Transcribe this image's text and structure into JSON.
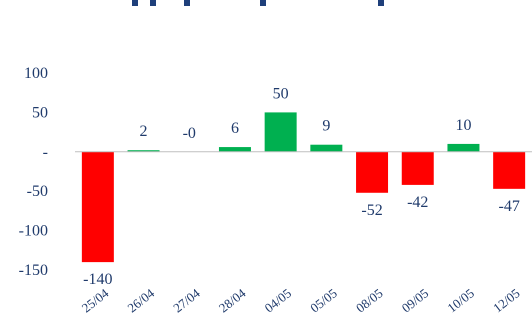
{
  "chart_data": {
    "type": "bar",
    "title": "",
    "xlabel": "",
    "ylabel": "",
    "ylim": [
      -150,
      100
    ],
    "grid": false,
    "y_ticks": [
      {
        "value": 100,
        "label": "100"
      },
      {
        "value": 50,
        "label": "50"
      },
      {
        "value": 0,
        "label": "-"
      },
      {
        "value": -50,
        "label": "-50"
      },
      {
        "value": -100,
        "label": "-100"
      },
      {
        "value": -150,
        "label": "-150"
      }
    ],
    "categories": [
      "25/04",
      "26/04",
      "27/04",
      "28/04",
      "04/05",
      "05/05",
      "08/05",
      "09/05",
      "10/05",
      "12/05"
    ],
    "series": [
      {
        "values": [
          -140,
          2,
          0,
          6,
          50,
          9,
          -52,
          -42,
          10,
          -47
        ],
        "labels": [
          "-140",
          "2",
          "-0",
          "6",
          "50",
          "9",
          "-52",
          "-42",
          "10",
          "-47"
        ]
      }
    ],
    "colors": {
      "positive": "#00b050",
      "negative": "#ff0000",
      "text": "#1f3a6b",
      "axis": "#bfbfbf"
    }
  }
}
